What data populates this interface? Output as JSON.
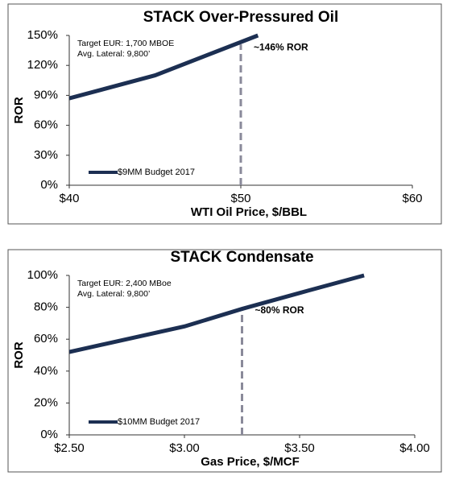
{
  "chart_data": [
    {
      "type": "line",
      "title": "STACK Over-Pressured Oil",
      "x_label": "WTI Oil Price, $/BBL",
      "y_label": "ROR",
      "notes": [
        "Target EUR: 1,700 MBOE",
        "Avg. Lateral: 9,800’"
      ],
      "annotation": "~146% ROR",
      "reference_line": {
        "x": 50,
        "y": 141,
        "color": "#8a8a9a"
      },
      "series": [
        {
          "name": "$9MM Budget 2017",
          "color": "#1c2f52",
          "x": [
            40,
            45,
            51
          ],
          "values": [
            87,
            110,
            150
          ]
        }
      ],
      "xlim": [
        40,
        60
      ],
      "xticks": [
        {
          "value": 40,
          "label": "$40"
        },
        {
          "value": 50,
          "label": "$50"
        },
        {
          "value": 60,
          "label": "$60"
        }
      ],
      "ylim": [
        0,
        150
      ],
      "yticks": [
        {
          "value": 0,
          "label": "0%"
        },
        {
          "value": 30,
          "label": "30%"
        },
        {
          "value": 60,
          "label": "60%"
        },
        {
          "value": 90,
          "label": "90%"
        },
        {
          "value": 120,
          "label": "120%"
        },
        {
          "value": 150,
          "label": "150%"
        }
      ],
      "legend": "lower left"
    },
    {
      "type": "line",
      "title": "STACK Condensate",
      "x_label": "Gas Price, $/MCF",
      "y_label": "ROR",
      "notes": [
        "Target EUR: 2,400 MBoe",
        "Avg. Lateral: 9,800’"
      ],
      "annotation": "~80% ROR",
      "reference_line": {
        "x": 3.25,
        "y": 80,
        "color": "#8a8a9a"
      },
      "series": [
        {
          "name": "$10MM Budget 2017",
          "color": "#1c2f52",
          "x": [
            2.5,
            3.0,
            3.25,
            3.5,
            3.78
          ],
          "values": [
            52,
            68,
            79,
            89,
            100
          ]
        }
      ],
      "xlim": [
        2.5,
        4.0
      ],
      "xticks": [
        {
          "value": 2.5,
          "label": "$2.50"
        },
        {
          "value": 3.0,
          "label": "$3.00"
        },
        {
          "value": 3.5,
          "label": "$3.50"
        },
        {
          "value": 4.0,
          "label": "$4.00"
        }
      ],
      "ylim": [
        0,
        100
      ],
      "yticks": [
        {
          "value": 0,
          "label": "0%"
        },
        {
          "value": 20,
          "label": "20%"
        },
        {
          "value": 40,
          "label": "40%"
        },
        {
          "value": 60,
          "label": "60%"
        },
        {
          "value": 80,
          "label": "80%"
        },
        {
          "value": 100,
          "label": "100%"
        }
      ],
      "legend": "lower left"
    }
  ]
}
